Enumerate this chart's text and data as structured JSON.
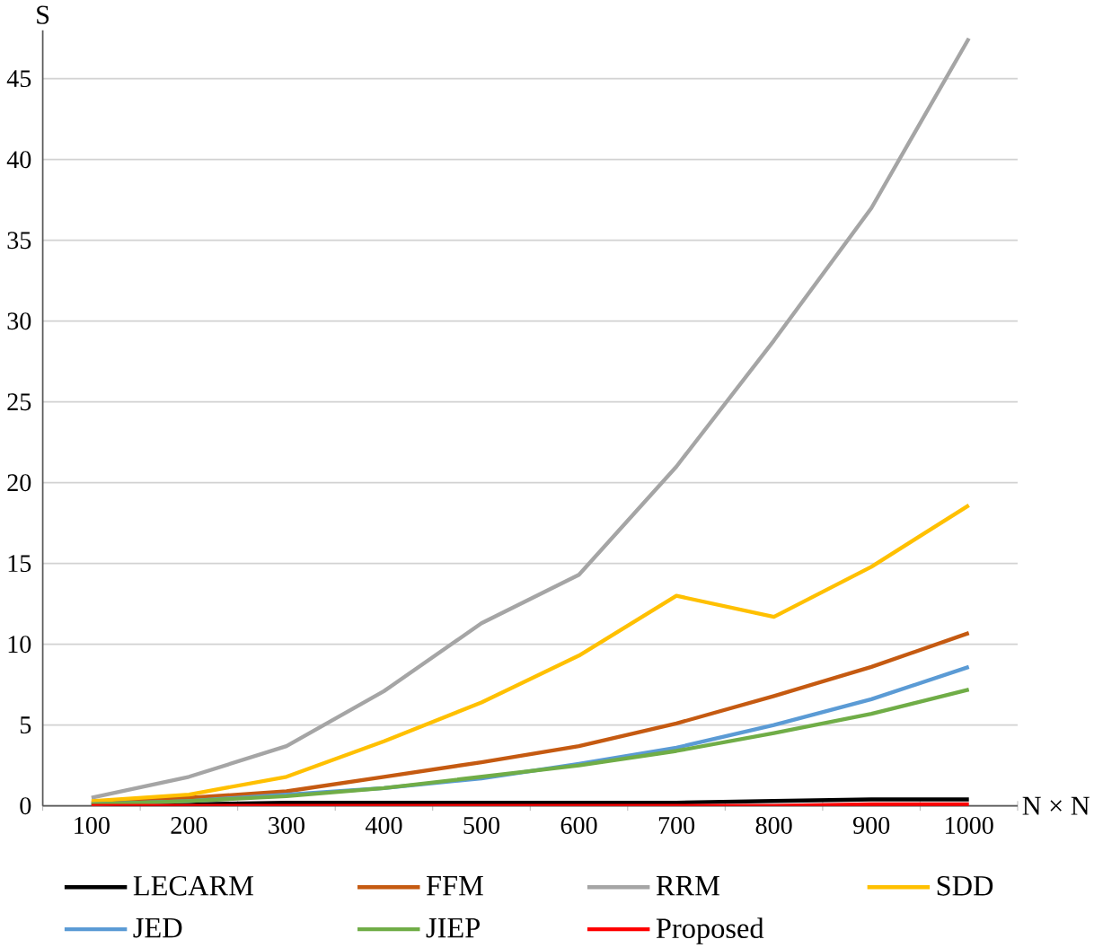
{
  "chart_data": {
    "type": "line",
    "xlabel": "N × N",
    "ylabel": "S",
    "categories": [
      "100",
      "200",
      "300",
      "400",
      "500",
      "600",
      "700",
      "800",
      "900",
      "1000"
    ],
    "ylim": [
      0,
      48
    ],
    "yticks": [
      0,
      5,
      10,
      15,
      20,
      25,
      30,
      35,
      40,
      45
    ],
    "grid": "y",
    "legend": "bottom",
    "marker": "none",
    "line_style": "solid",
    "series": [
      {
        "name": "LECARM",
        "color": "#000000",
        "values": [
          0.1,
          0.1,
          0.2,
          0.2,
          0.2,
          0.2,
          0.2,
          0.3,
          0.4,
          0.4
        ]
      },
      {
        "name": "FFM",
        "color": "#c55a11",
        "values": [
          0.2,
          0.5,
          0.9,
          1.8,
          2.7,
          3.7,
          5.1,
          6.8,
          8.6,
          10.7
        ]
      },
      {
        "name": "RRM",
        "color": "#a5a5a5",
        "values": [
          0.5,
          1.8,
          3.7,
          7.1,
          11.3,
          14.3,
          21,
          28.8,
          37,
          47.5
        ]
      },
      {
        "name": "SDD",
        "color": "#ffc000",
        "values": [
          0.3,
          0.7,
          1.8,
          4,
          6.4,
          9.3,
          13,
          11.7,
          14.8,
          18.6
        ]
      },
      {
        "name": "JED",
        "color": "#5b9bd5",
        "values": [
          0.1,
          0.3,
          0.7,
          1.1,
          1.7,
          2.6,
          3.6,
          5,
          6.6,
          8.6
        ]
      },
      {
        "name": "JIEP",
        "color": "#70ad47",
        "values": [
          0.1,
          0.3,
          0.6,
          1.1,
          1.8,
          2.5,
          3.4,
          4.5,
          5.7,
          7.2
        ]
      },
      {
        "name": "Proposed",
        "color": "#ff0000",
        "values": [
          0,
          0,
          0,
          0,
          0,
          0,
          0,
          0,
          0.1,
          0.1
        ]
      }
    ]
  }
}
